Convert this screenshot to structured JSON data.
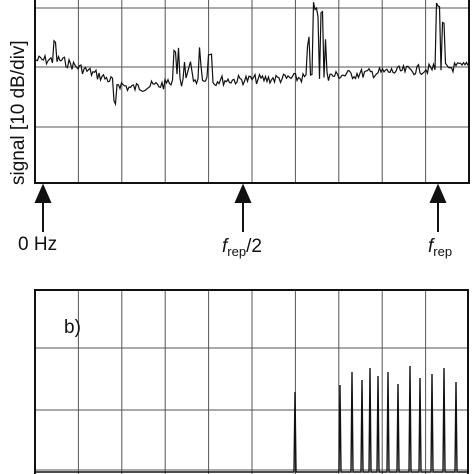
{
  "axis_label": "signal [10 dB/div]",
  "markers": [
    {
      "text": "0 Hz"
    },
    {
      "f": "f",
      "sub": "rep",
      "rest": "/2"
    },
    {
      "f": "f",
      "sub": "rep"
    }
  ],
  "panel_label": "b)"
}
